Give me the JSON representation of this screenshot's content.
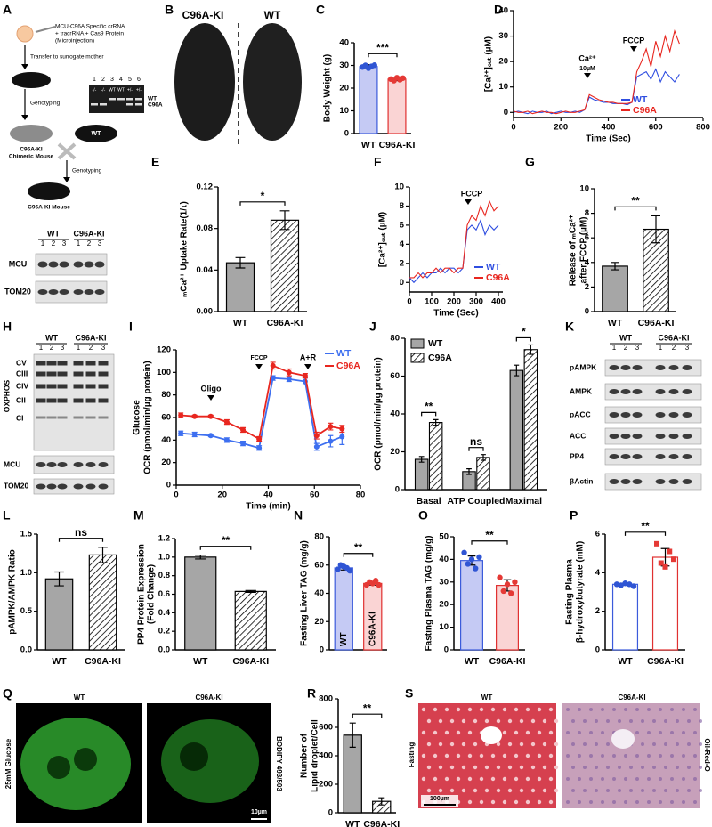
{
  "chart_data": [
    {
      "panel": "C",
      "type": "bar",
      "ylabel": "Body Weight (g)",
      "categories": [
        "WT",
        "C96A-KI"
      ],
      "values": [
        29.5,
        24
      ],
      "errors": [
        0.8,
        0.7
      ],
      "points": [
        [
          29.3,
          30,
          28.8,
          29.6,
          30.1
        ],
        [
          24,
          23.3,
          24.6,
          23.7,
          24.4
        ]
      ],
      "colors": [
        "#c5caf4",
        "#fad4d4"
      ],
      "edge_colors": [
        "#3b5bdb",
        "#e03131"
      ],
      "point_colors": [
        "#2f55d4",
        "#e53935"
      ],
      "markers": [
        "circle",
        "circle"
      ],
      "hatched": [
        false,
        false
      ],
      "ylim": [
        0,
        40
      ],
      "yticks": [
        0,
        10,
        20,
        30,
        40
      ],
      "significance": "***"
    },
    {
      "panel": "D",
      "type": "line",
      "ylabel": "[Ca²⁺]ₒᵤₜ (µM)",
      "xlabel": "Time (Sec)",
      "xlim": [
        0,
        800
      ],
      "xticks": [
        0,
        200,
        400,
        600,
        800
      ],
      "ylim": [
        -2,
        40
      ],
      "yticks": [
        0,
        10,
        20,
        30,
        40
      ],
      "annotations": [
        "Ca²⁺",
        "10µM",
        "FCCP"
      ],
      "legend": "lower right",
      "x": [
        0,
        20,
        40,
        60,
        80,
        100,
        120,
        140,
        160,
        180,
        200,
        220,
        240,
        260,
        280,
        300,
        320,
        340,
        360,
        380,
        400,
        420,
        440,
        460,
        480,
        500,
        520,
        540,
        560,
        580,
        600,
        620,
        640,
        660,
        680,
        700
      ],
      "series": [
        {
          "name": "WT",
          "color": "#2f4ee0",
          "values": [
            0,
            0.5,
            0,
            -0.5,
            0.5,
            0,
            0,
            0.5,
            -0.5,
            0,
            0.5,
            0,
            0,
            0.5,
            0,
            1,
            6,
            5,
            4.5,
            4,
            4,
            3.5,
            3.5,
            3.5,
            3,
            4,
            14,
            15,
            16,
            13,
            17,
            12,
            16,
            14,
            12,
            15
          ]
        },
        {
          "name": "C96A",
          "color": "#e8261f",
          "values": [
            0.5,
            0,
            0,
            0.5,
            -0.5,
            0,
            0.5,
            0,
            0,
            -0.5,
            0,
            0.5,
            0,
            0,
            0.5,
            1,
            7,
            6,
            5,
            4.5,
            4,
            4,
            3.5,
            3.5,
            3.5,
            4,
            16,
            20,
            25,
            18,
            28,
            22,
            30,
            24,
            32,
            27
          ]
        }
      ]
    },
    {
      "panel": "E",
      "type": "bar",
      "ylabel": "ₘCa²⁺ Uptake Rate(1/τ)",
      "categories": [
        "WT",
        "C96A-KI"
      ],
      "values": [
        0.047,
        0.088
      ],
      "errors": [
        0.005,
        0.009
      ],
      "colors": [
        "#a6a6a6",
        "#ffffff"
      ],
      "hatched": [
        false,
        true
      ],
      "ylim": [
        0,
        0.12
      ],
      "yticks": [
        {
          "value": 0,
          "label": "0.00"
        },
        0.04,
        0.08,
        0.12
      ],
      "significance": "*"
    },
    {
      "panel": "F",
      "type": "line",
      "ylabel": "[Ca²⁺]ₒᵤₜ (µM)",
      "xlabel": "Time (Sec)",
      "xlim": [
        0,
        420
      ],
      "xticks": [
        0,
        100,
        200,
        300,
        400
      ],
      "ylim": [
        -1,
        10
      ],
      "yticks": [
        0,
        2,
        4,
        6,
        8,
        10
      ],
      "annotations": [
        "FCCP"
      ],
      "legend": "lower right",
      "x": [
        0,
        20,
        40,
        60,
        80,
        100,
        120,
        140,
        160,
        180,
        200,
        220,
        240,
        260,
        280,
        300,
        320,
        340,
        360,
        380,
        400
      ],
      "series": [
        {
          "name": "WT",
          "color": "#2f4ee0",
          "values": [
            0.5,
            0,
            0.5,
            1,
            0.5,
            1,
            1,
            1.5,
            1,
            1.5,
            1.5,
            1,
            1.5,
            5.5,
            6,
            5.5,
            6.5,
            5,
            6,
            5.5,
            6
          ]
        },
        {
          "name": "C96A",
          "color": "#e8261f",
          "values": [
            0.5,
            0.5,
            1,
            0.5,
            1,
            1,
            1.5,
            1,
            1.5,
            1.5,
            1,
            1.5,
            1.5,
            6,
            7,
            6.5,
            8,
            7,
            8.5,
            7.5,
            8
          ]
        }
      ]
    },
    {
      "panel": "G",
      "type": "bar",
      "ylabel": [
        "Release of ₘCa²⁺",
        "after FCCP (µM)"
      ],
      "categories": [
        "WT",
        "C96A-KI"
      ],
      "values": [
        3.7,
        6.7
      ],
      "errors": [
        0.3,
        1.1
      ],
      "colors": [
        "#a6a6a6",
        "#ffffff"
      ],
      "hatched": [
        false,
        true
      ],
      "ylim": [
        0,
        10
      ],
      "yticks": [
        0,
        2,
        4,
        6,
        8,
        10
      ],
      "significance": "**"
    },
    {
      "panel": "I",
      "type": "line",
      "ylabel": [
        "Glucose",
        "OCR (pmol/min/µg protein)"
      ],
      "xlabel": "Time (min)",
      "xlim": [
        0,
        80
      ],
      "xticks": [
        0,
        20,
        40,
        60,
        80
      ],
      "ylim": [
        0,
        120
      ],
      "yticks": [
        0,
        20,
        40,
        60,
        80,
        100,
        120
      ],
      "annotations": [
        "Oligo",
        "FCCP",
        "A+R"
      ],
      "legend": "upper right",
      "markers": true,
      "x": [
        2,
        8,
        15,
        22,
        29,
        36,
        42,
        49,
        56,
        61,
        67,
        72
      ],
      "series": [
        {
          "name": "WT",
          "color": "#3d6ff0",
          "values": [
            46,
            45,
            44,
            40,
            37,
            33,
            95,
            94,
            92,
            34,
            39,
            43
          ],
          "errors": [
            2,
            2,
            1,
            2,
            2,
            2,
            2,
            2,
            3,
            3,
            5,
            7
          ]
        },
        {
          "name": "C96A",
          "color": "#e8261f",
          "values": [
            62,
            61,
            61,
            56,
            49,
            41,
            106,
            100,
            97,
            44,
            52,
            50
          ],
          "errors": [
            2,
            1,
            1,
            2,
            2,
            2,
            3,
            3,
            2,
            3,
            3,
            3
          ]
        }
      ]
    },
    {
      "panel": "J",
      "type": "grouped_bar",
      "ylabel": "OCR (pmol/min/µg protein)",
      "categories": [
        "Basal",
        "ATP Coupled",
        "Maximal"
      ],
      "legend": "upper left",
      "series": [
        {
          "name": "WT",
          "color": "#a6a6a6",
          "hatched": false,
          "values": [
            16,
            9.5,
            63
          ],
          "errors": [
            1.5,
            1.5,
            2.8
          ]
        },
        {
          "name": "C96A",
          "color": "#ffffff",
          "hatched": true,
          "values": [
            35.5,
            17,
            74
          ],
          "errors": [
            1.5,
            1.5,
            2.5
          ]
        }
      ],
      "ylim": [
        0,
        80
      ],
      "yticks": [
        0,
        20,
        40,
        60,
        80
      ],
      "significance": [
        "**",
        "ns",
        "*"
      ]
    },
    {
      "panel": "L",
      "type": "bar",
      "ylabel": "pAMPK/AMPK Ratio",
      "categories": [
        "WT",
        "C96A-KI"
      ],
      "values": [
        0.92,
        1.23
      ],
      "errors": [
        0.09,
        0.1
      ],
      "colors": [
        "#a6a6a6",
        "#ffffff"
      ],
      "hatched": [
        false,
        true
      ],
      "ylim": [
        0,
        1.5
      ],
      "yticks": [
        {
          "value": 0,
          "label": "0.0"
        },
        0.5,
        {
          "value": 1,
          "label": "1.0"
        },
        1.5
      ],
      "significance": "ns"
    },
    {
      "panel": "M",
      "type": "bar",
      "ylabel": [
        "PP4 Protein Expression",
        "(Fold Change)"
      ],
      "categories": [
        "WT",
        "C96A-KI"
      ],
      "values": [
        1.0,
        0.63
      ],
      "errors": [
        0.02,
        0.01
      ],
      "colors": [
        "#a6a6a6",
        "#ffffff"
      ],
      "hatched": [
        false,
        true
      ],
      "ylim": [
        0,
        1.2
      ],
      "yticks": [
        {
          "value": 0,
          "label": "0.0"
        },
        0.2,
        0.4,
        0.6,
        0.8,
        {
          "value": 1,
          "label": "1.0"
        },
        1.2
      ],
      "significance": "**"
    },
    {
      "panel": "N",
      "type": "bar",
      "ylabel": "Fasting Liver TAG (mg/g)",
      "categories": [
        "WT",
        "C96A-KI"
      ],
      "values": [
        58,
        47
      ],
      "errors": [
        1.5,
        1.2
      ],
      "labels_inside": true,
      "points": [
        [
          57,
          60,
          59,
          58,
          56
        ],
        [
          46,
          48,
          47,
          49,
          46
        ]
      ],
      "colors": [
        "#c5caf4",
        "#fad4d4"
      ],
      "edge_colors": [
        "#3b5bdb",
        "#e03131"
      ],
      "point_colors": [
        "#2f55d4",
        "#e53935"
      ],
      "markers": [
        "circle",
        "circle"
      ],
      "hatched": [
        false,
        false
      ],
      "ylim": [
        0,
        80
      ],
      "yticks": [
        0,
        20,
        40,
        60,
        80
      ],
      "significance": "**"
    },
    {
      "panel": "O",
      "type": "bar",
      "ylabel": "Fasting Plasma TAG (mg/g)",
      "categories": [
        "WT",
        "C96A-KI"
      ],
      "values": [
        39.5,
        28.5
      ],
      "errors": [
        2,
        2.5
      ],
      "points": [
        [
          43,
          38,
          40,
          36,
          41
        ],
        [
          32,
          26,
          29,
          25,
          30
        ]
      ],
      "colors": [
        "#c5caf4",
        "#fad4d4"
      ],
      "edge_colors": [
        "#3b5bdb",
        "#e03131"
      ],
      "point_colors": [
        "#2f55d4",
        "#e53935"
      ],
      "markers": [
        "circle",
        "circle"
      ],
      "hatched": [
        false,
        false
      ],
      "ylim": [
        0,
        50
      ],
      "yticks": [
        0,
        10,
        20,
        30,
        40,
        50
      ],
      "significance": "**"
    },
    {
      "panel": "P",
      "type": "bar",
      "ylabel": [
        "Fasting Plasma",
        "β-hydroxybutyrate (mM)"
      ],
      "categories": [
        "WT",
        "C96A-KI"
      ],
      "values": [
        3.4,
        4.8
      ],
      "errors": [
        0.05,
        0.45
      ],
      "points": [
        [
          3.4,
          3.35,
          3.45,
          3.4,
          3.3
        ],
        [
          5.5,
          4.5,
          4.3,
          5.1,
          4.7
        ]
      ],
      "colors": [
        "#ffffff",
        "#ffffff"
      ],
      "edge_colors": [
        "#3b5bdb",
        "#e03131"
      ],
      "point_colors": [
        "#2f55d4",
        "#e53935"
      ],
      "markers": [
        "circle",
        "square"
      ],
      "hatched": [
        false,
        false
      ],
      "ylim": [
        0,
        6
      ],
      "yticks": [
        0,
        2,
        4,
        6
      ],
      "significance": "**"
    },
    {
      "panel": "R",
      "type": "bar",
      "ylabel": [
        "Number of",
        "Lipid droplet/Cell"
      ],
      "categories": [
        "WT",
        "C96A-KI"
      ],
      "values": [
        545,
        80
      ],
      "errors": [
        85,
        25
      ],
      "colors": [
        "#a6a6a6",
        "#ffffff"
      ],
      "hatched": [
        false,
        true
      ],
      "ylim": [
        0,
        800
      ],
      "yticks": [
        0,
        200,
        400,
        600,
        800
      ],
      "significance": "**"
    }
  ],
  "panels": [
    {
      "letter": "A",
      "injection": [
        "MCU-C96A Specific crRNA",
        "+ tracrRNA + Cas9 Protein",
        "(Microinjection)"
      ],
      "transfer": "Transfer to surrogate mother",
      "genotyping": [
        "Genotyping",
        "Genotyping"
      ],
      "chimeric": [
        "C96A-KI",
        "Chimeric Mouse"
      ],
      "wt_mouse": "WT",
      "ki_mouse": "C96A-KI Mouse",
      "gel": {
        "lanes": [
          "1",
          "2",
          "3",
          "4",
          "5",
          "6"
        ],
        "genotypes": [
          "-/-",
          "-/-",
          "WT",
          "WT",
          "+/-",
          "+/-"
        ],
        "bands": [
          "WT",
          "C96A"
        ]
      },
      "blot": {
        "groups": [
          "WT",
          "C96A-KI"
        ],
        "lanes": [
          "1",
          "2",
          "3",
          "1",
          "2",
          "3"
        ],
        "rows": [
          "MCU",
          "TOM20"
        ]
      }
    },
    {
      "letter": "B",
      "labels": [
        "C96A-KI",
        "WT"
      ]
    },
    {
      "letter": "H",
      "blot": {
        "groups": [
          "WT",
          "C96A-KI"
        ],
        "lanes": [
          "1",
          "2",
          "3",
          "1",
          "2",
          "3"
        ],
        "group_label": "OXPHOS",
        "complexes": [
          "CV",
          "CIII",
          "CIV",
          "CII",
          "CI"
        ],
        "rows": [
          "MCU",
          "TOM20"
        ]
      }
    },
    {
      "letter": "K",
      "blot": {
        "groups": [
          "WT",
          "C96A-KI"
        ],
        "lanes": [
          "1",
          "2",
          "3",
          "1",
          "2",
          "3"
        ],
        "rows": [
          "pAMPK",
          "AMPK",
          "pACC",
          "ACC",
          "PP4",
          "βActin"
        ]
      }
    },
    {
      "letter": "Q",
      "columns": [
        "WT",
        "C96A-KI"
      ],
      "row_label": "25mM Glucose",
      "stain": "BODIPY 493/503",
      "scale": "10µm"
    },
    {
      "letter": "S",
      "columns": [
        "WT",
        "C96A-KI"
      ],
      "row_label": "Fasting",
      "stain": "Oil-Red-O",
      "scale": "100µm"
    }
  ]
}
